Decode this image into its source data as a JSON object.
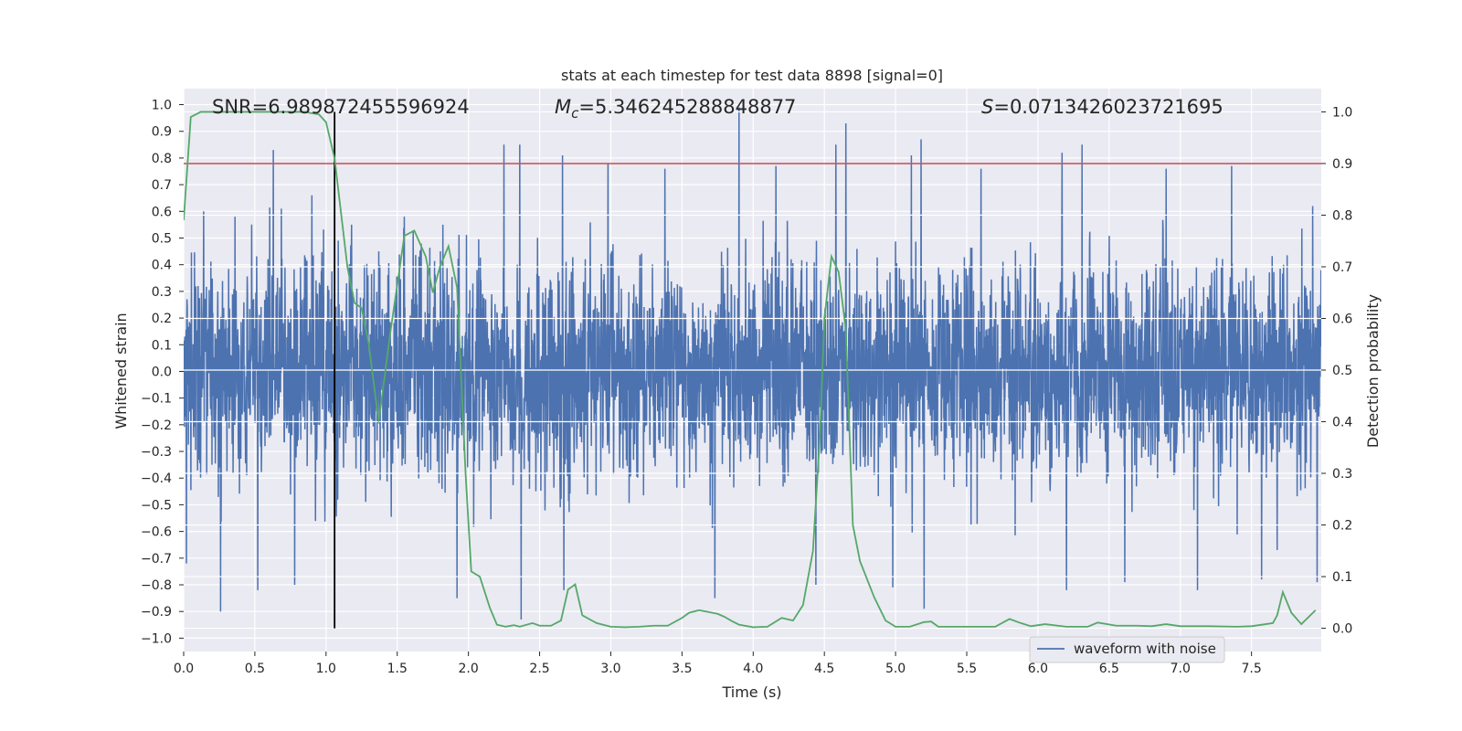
{
  "chart_data": {
    "type": "line",
    "title": "stats at each timestep for test data 8898 [signal=0]",
    "xlabel": "Time (s)",
    "ylabel": "Whitened strain",
    "y2label": "Detection probability",
    "xlim": [
      0,
      7.99
    ],
    "ylim": [
      -1.05,
      1.06
    ],
    "y2lim": [
      -0.045,
      1.045
    ],
    "x_ticks": [
      0.0,
      0.5,
      1.0,
      1.5,
      2.0,
      2.5,
      3.0,
      3.5,
      4.0,
      4.5,
      5.0,
      5.5,
      6.0,
      6.5,
      7.0,
      7.5
    ],
    "x_tick_labels": [
      "0.0",
      "0.5",
      "1.0",
      "1.5",
      "2.0",
      "2.5",
      "3.0",
      "3.5",
      "4.0",
      "4.5",
      "5.0",
      "5.5",
      "6.0",
      "6.5",
      "7.0",
      "7.5"
    ],
    "y_ticks": [
      1.0,
      0.9,
      0.8,
      0.7,
      0.6,
      0.5,
      0.4,
      0.3,
      0.2,
      0.1,
      0.0,
      -0.1,
      -0.2,
      -0.3,
      -0.4,
      -0.5,
      -0.6,
      -0.7,
      -0.8,
      -0.9,
      -1.0
    ],
    "y_tick_labels": [
      "1.0",
      "0.9",
      "0.8",
      "0.7",
      "0.6",
      "0.5",
      "0.4",
      "0.3",
      "0.2",
      "0.1",
      "0.0",
      "−0.1",
      "−0.2",
      "−0.3",
      "−0.4",
      "−0.5",
      "−0.6",
      "−0.7",
      "−0.8",
      "−0.9",
      "−1.0"
    ],
    "y2_ticks": [
      1.0,
      0.9,
      0.8,
      0.7,
      0.6,
      0.5,
      0.4,
      0.3,
      0.2,
      0.1,
      0.0
    ],
    "y2_tick_labels": [
      "1.0",
      "0.9",
      "0.8",
      "0.7",
      "0.6",
      "0.5",
      "0.4",
      "0.3",
      "0.2",
      "0.1",
      "0.0"
    ],
    "grid": true,
    "legend_placement": "bottom-right",
    "annotations": {
      "snr": "SNR=6.989872455596924",
      "mc_symbol": "M",
      "mc_sub": "c",
      "mc_value": "=5.346245288848877",
      "s_symbol": "S",
      "s_value": "=0.0713426023721695"
    },
    "threshold": {
      "value": 0.9,
      "axis": "right",
      "color": "#c44e52"
    },
    "vertical_marker": {
      "x": 1.06,
      "color": "#000000"
    },
    "series": [
      {
        "name": "waveform with noise",
        "axis": "left",
        "color": "#4c72b0",
        "style": "noise",
        "amplitude_rms": 0.2,
        "spikes": [
          {
            "x": 0.02,
            "y": -0.72
          },
          {
            "x": 0.14,
            "y": 0.6
          },
          {
            "x": 0.26,
            "y": -0.9
          },
          {
            "x": 0.36,
            "y": 0.58
          },
          {
            "x": 0.52,
            "y": -0.82
          },
          {
            "x": 0.63,
            "y": 0.83
          },
          {
            "x": 0.78,
            "y": -0.8
          },
          {
            "x": 0.9,
            "y": 0.66
          },
          {
            "x": 1.18,
            "y": 0.55
          },
          {
            "x": 1.55,
            "y": 0.58
          },
          {
            "x": 1.82,
            "y": 0.55
          },
          {
            "x": 1.92,
            "y": -0.85
          },
          {
            "x": 2.25,
            "y": 0.85
          },
          {
            "x": 2.36,
            "y": 0.85
          },
          {
            "x": 2.37,
            "y": -0.93
          },
          {
            "x": 2.66,
            "y": 0.81
          },
          {
            "x": 2.67,
            "y": -0.82
          },
          {
            "x": 2.98,
            "y": 0.78
          },
          {
            "x": 3.38,
            "y": 0.76
          },
          {
            "x": 3.73,
            "y": -0.85
          },
          {
            "x": 3.9,
            "y": 0.99
          },
          {
            "x": 4.16,
            "y": 0.77
          },
          {
            "x": 4.44,
            "y": -0.8
          },
          {
            "x": 4.58,
            "y": 0.85
          },
          {
            "x": 4.65,
            "y": 0.93
          },
          {
            "x": 4.98,
            "y": -0.81
          },
          {
            "x": 5.11,
            "y": 0.81
          },
          {
            "x": 5.18,
            "y": 0.87
          },
          {
            "x": 5.2,
            "y": -0.89
          },
          {
            "x": 5.6,
            "y": 0.76
          },
          {
            "x": 6.17,
            "y": 0.82
          },
          {
            "x": 6.2,
            "y": -0.82
          },
          {
            "x": 6.31,
            "y": 0.85
          },
          {
            "x": 6.61,
            "y": -0.79
          },
          {
            "x": 6.9,
            "y": 0.76
          },
          {
            "x": 7.12,
            "y": -0.82
          },
          {
            "x": 7.36,
            "y": 0.77
          },
          {
            "x": 7.57,
            "y": -0.78
          },
          {
            "x": 7.68,
            "y": 0.93
          },
          {
            "x": 7.68,
            "y": -0.67
          },
          {
            "x": 7.96,
            "y": -0.79
          }
        ]
      },
      {
        "name": "",
        "axis": "right",
        "color": "#55a868",
        "style": "line",
        "x": [
          0.0,
          0.05,
          0.12,
          0.3,
          0.5,
          0.7,
          0.85,
          0.95,
          1.0,
          1.06,
          1.15,
          1.2,
          1.25,
          1.3,
          1.37,
          1.45,
          1.55,
          1.62,
          1.7,
          1.75,
          1.8,
          1.86,
          1.92,
          1.98,
          2.02,
          2.08,
          2.15,
          2.2,
          2.26,
          2.32,
          2.36,
          2.45,
          2.5,
          2.58,
          2.65,
          2.7,
          2.75,
          2.8,
          2.9,
          3.0,
          3.1,
          3.2,
          3.3,
          3.4,
          3.5,
          3.55,
          3.62,
          3.75,
          3.8,
          3.85,
          3.9,
          4.0,
          4.1,
          4.2,
          4.28,
          4.35,
          4.42,
          4.47,
          4.5,
          4.55,
          4.6,
          4.65,
          4.7,
          4.75,
          4.85,
          4.93,
          5.0,
          5.1,
          5.2,
          5.25,
          5.3,
          5.5,
          5.7,
          5.8,
          5.88,
          5.95,
          6.05,
          6.2,
          6.35,
          6.42,
          6.55,
          6.7,
          6.8,
          6.9,
          7.0,
          7.2,
          7.4,
          7.5,
          7.6,
          7.65,
          7.68,
          7.72,
          7.78,
          7.85,
          7.95
        ],
        "y": [
          0.79,
          0.99,
          1.0,
          1.0,
          1.0,
          1.0,
          1.0,
          0.995,
          0.98,
          0.91,
          0.7,
          0.63,
          0.62,
          0.55,
          0.4,
          0.57,
          0.76,
          0.77,
          0.72,
          0.65,
          0.7,
          0.74,
          0.66,
          0.3,
          0.11,
          0.1,
          0.04,
          0.007,
          0.003,
          0.006,
          0.003,
          0.01,
          0.005,
          0.005,
          0.015,
          0.075,
          0.085,
          0.025,
          0.01,
          0.003,
          0.002,
          0.003,
          0.005,
          0.005,
          0.02,
          0.03,
          0.035,
          0.028,
          0.022,
          0.014,
          0.007,
          0.002,
          0.003,
          0.02,
          0.015,
          0.045,
          0.15,
          0.38,
          0.6,
          0.72,
          0.69,
          0.58,
          0.2,
          0.13,
          0.06,
          0.015,
          0.003,
          0.003,
          0.012,
          0.013,
          0.003,
          0.003,
          0.003,
          0.018,
          0.01,
          0.004,
          0.008,
          0.003,
          0.003,
          0.011,
          0.005,
          0.005,
          0.004,
          0.008,
          0.004,
          0.004,
          0.003,
          0.004,
          0.008,
          0.01,
          0.025,
          0.07,
          0.03,
          0.008,
          0.035
        ]
      }
    ]
  }
}
